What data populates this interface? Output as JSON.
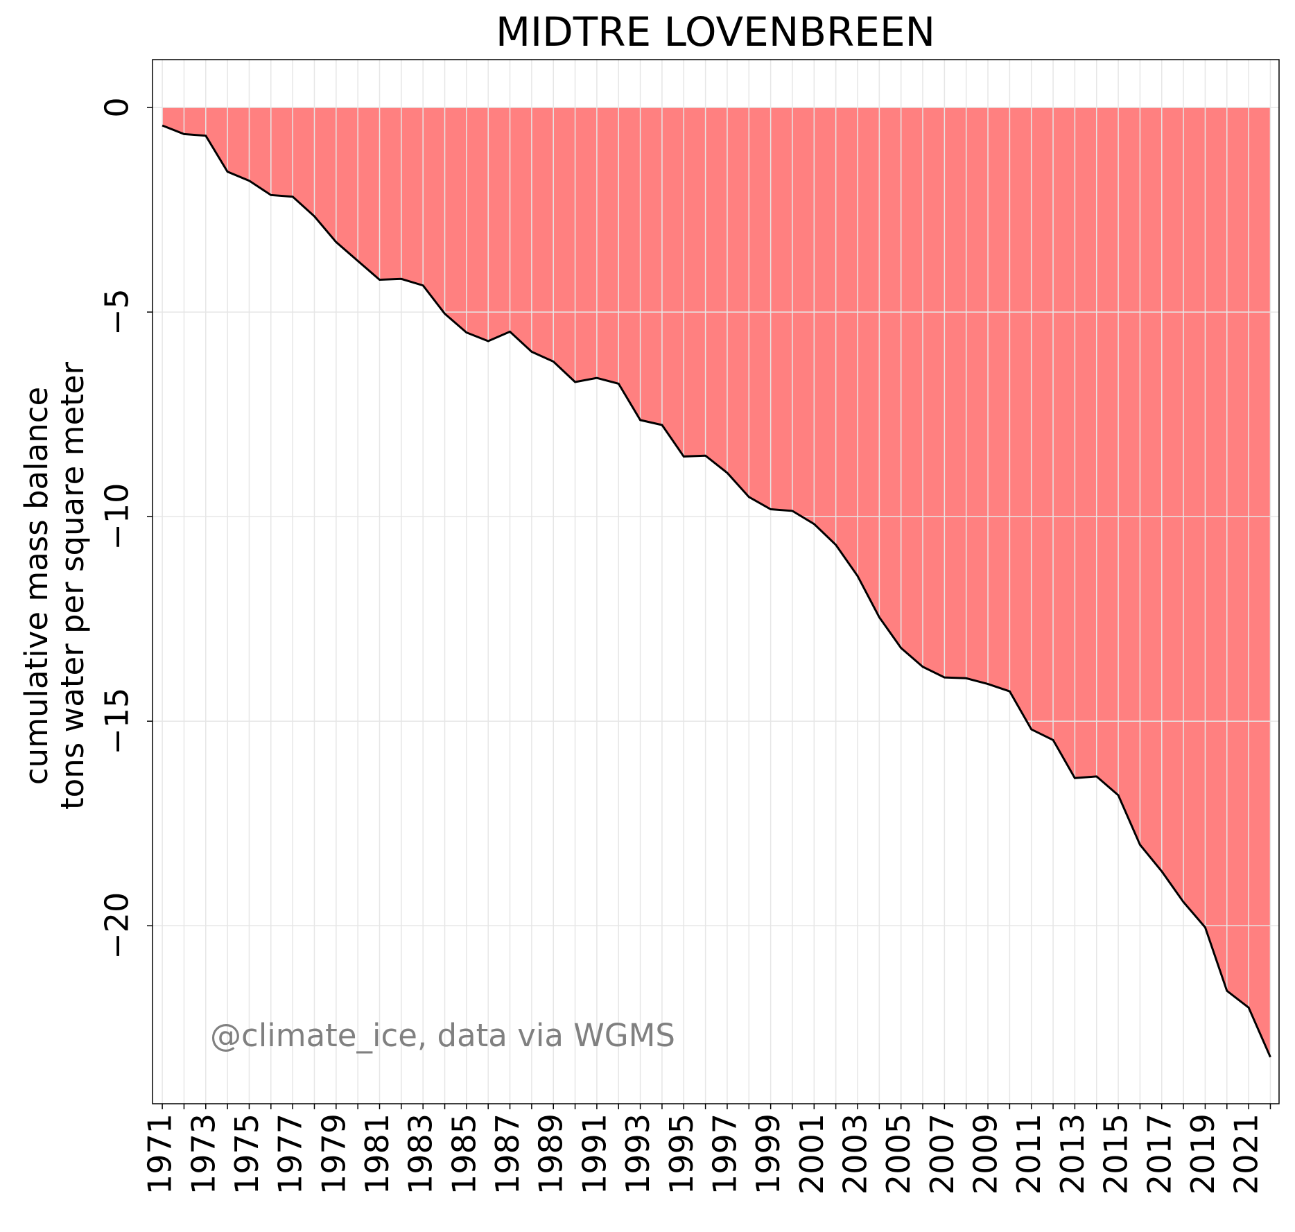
{
  "chart_data": {
    "type": "area",
    "title": "MIDTRE LOVENBREEN",
    "ylabel": [
      "cumulative mass balance",
      "tons water per square meter"
    ],
    "annotation": "@climate_ice, data via WGMS",
    "x": [
      1971,
      1972,
      1973,
      1974,
      1975,
      1976,
      1977,
      1978,
      1979,
      1980,
      1981,
      1982,
      1983,
      1984,
      1985,
      1986,
      1987,
      1988,
      1989,
      1990,
      1991,
      1992,
      1993,
      1994,
      1995,
      1996,
      1997,
      1998,
      1999,
      2000,
      2001,
      2002,
      2003,
      2004,
      2005,
      2006,
      2007,
      2008,
      2009,
      2010,
      2011,
      2012,
      2013,
      2014,
      2015,
      2016,
      2017,
      2018,
      2019,
      2020,
      2021,
      2022
    ],
    "values": [
      -0.44,
      -0.65,
      -0.69,
      -1.57,
      -1.79,
      -2.14,
      -2.18,
      -2.66,
      -3.29,
      -3.75,
      -4.21,
      -4.19,
      -4.35,
      -5.04,
      -5.5,
      -5.71,
      -5.48,
      -5.97,
      -6.21,
      -6.71,
      -6.61,
      -6.75,
      -7.64,
      -7.76,
      -8.53,
      -8.51,
      -8.93,
      -9.52,
      -9.82,
      -9.86,
      -10.18,
      -10.69,
      -11.45,
      -12.46,
      -13.21,
      -13.67,
      -13.93,
      -13.95,
      -14.09,
      -14.27,
      -15.2,
      -15.46,
      -16.39,
      -16.35,
      -16.81,
      -18.02,
      -18.67,
      -19.42,
      -20.04,
      -21.59,
      -22.0,
      -23.21
    ],
    "fill_color": "#ff8080",
    "line_color": "#000000",
    "xlim": [
      1970.55,
      2022.4
    ],
    "ylim": [
      -24.35,
      1.17
    ],
    "xticks": [
      1971,
      1973,
      1975,
      1977,
      1979,
      1981,
      1983,
      1985,
      1987,
      1989,
      1991,
      1993,
      1995,
      1997,
      1999,
      2001,
      2003,
      2005,
      2007,
      2009,
      2011,
      2013,
      2015,
      2017,
      2019,
      2021
    ],
    "x_minor_ticks": [
      1972,
      1974,
      1976,
      1978,
      1980,
      1982,
      1984,
      1986,
      1988,
      1990,
      1992,
      1994,
      1996,
      1998,
      2000,
      2002,
      2004,
      2006,
      2008,
      2010,
      2012,
      2014,
      2016,
      2018,
      2020,
      2022
    ],
    "yticks": [
      0,
      {
        "value": -5,
        "label": "−5"
      },
      {
        "value": -10,
        "label": "−10"
      },
      {
        "value": -15,
        "label": "−15"
      },
      {
        "value": -20,
        "label": "−20"
      }
    ],
    "grid": true
  }
}
